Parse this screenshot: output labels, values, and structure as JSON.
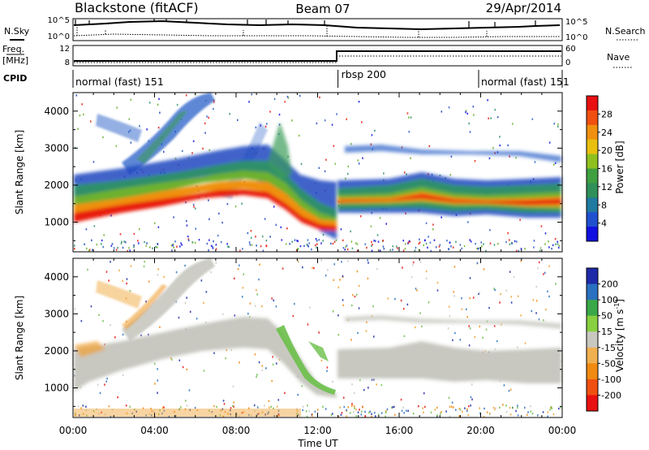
{
  "header": {
    "title": "Blackstone (fitACF)",
    "beam": "Beam 07",
    "date": "29/Apr/2014"
  },
  "left_labels": {
    "nsky": "N.Sky",
    "freq_line1": "Freq.",
    "freq_line2": "[MHz]",
    "cpid": "CPID"
  },
  "right_labels": {
    "nsearch": "N.Search",
    "nave": "Nave"
  },
  "noise_panel": {
    "left_ticks": [
      "10^5",
      "10^0"
    ],
    "right_ticks": [
      "10^5",
      "10^0"
    ]
  },
  "freq_panel": {
    "left_ticks": [
      "12",
      "8"
    ],
    "right_ticks": [
      "60",
      "0"
    ]
  },
  "cpid_segments": [
    {
      "label": "normal (fast) 151",
      "start_hour": 0,
      "end_hour": 13.0
    },
    {
      "label": "rbsp 200",
      "start_hour": 13.0,
      "end_hour": 19.9
    },
    {
      "label": "normal (fast) 151",
      "start_hour": 19.9,
      "end_hour": 24
    }
  ],
  "chart_data": [
    {
      "type": "heatmap",
      "name": "power",
      "ylabel": "Slant Range [km]",
      "yticks": [
        1000,
        2000,
        3000,
        4000
      ],
      "ylim": [
        200,
        4500
      ],
      "xlim": [
        0,
        24
      ],
      "colorbar": {
        "label": "Power [dB]",
        "ticks": [
          "28",
          "24",
          "20",
          "16",
          "12",
          "8",
          "4"
        ],
        "range": [
          0,
          32
        ],
        "colors": [
          "#1010e0",
          "#2050d0",
          "#207aa0",
          "#30905a",
          "#40a040",
          "#90c020",
          "#e8c010",
          "#f09010",
          "#f05010",
          "#e81010"
        ]
      },
      "features": [
        {
          "hours": [
            0,
            2,
            4,
            6,
            8,
            10,
            11,
            12,
            12.8
          ],
          "range_km": [
            950,
            1150,
            1350,
            1600,
            1900,
            1750,
            1300,
            1000,
            900
          ]
        },
        {
          "hours": [
            13,
            14,
            15,
            16,
            17,
            18,
            20,
            22,
            24
          ],
          "range_km": [
            1380,
            1400,
            1450,
            1550,
            1450,
            1420,
            1420,
            1400,
            1350
          ]
        }
      ]
    },
    {
      "type": "heatmap",
      "name": "velocity",
      "ylabel": "Slant Range [km]",
      "xlabel": "Time UT",
      "xticks": [
        "00:00",
        "04:00",
        "08:00",
        "12:00",
        "16:00",
        "20:00",
        "00:00"
      ],
      "yticks": [
        1000,
        2000,
        3000,
        4000
      ],
      "ylim": [
        200,
        4500
      ],
      "xlim": [
        0,
        24
      ],
      "colorbar": {
        "label": "Velocity [m s-1]",
        "label_main": "Velocity [m s",
        "label_sup": "-1",
        "label_end": "]",
        "ticks": [
          "200",
          "100",
          "50",
          "15",
          "-15",
          "-50",
          "-100",
          "-200"
        ],
        "colors": [
          "#1e2aa8",
          "#2a70c0",
          "#3aa848",
          "#88d040",
          "#c8c8c0",
          "#f0b050",
          "#f08a10",
          "#f05010",
          "#e81010"
        ]
      }
    }
  ]
}
